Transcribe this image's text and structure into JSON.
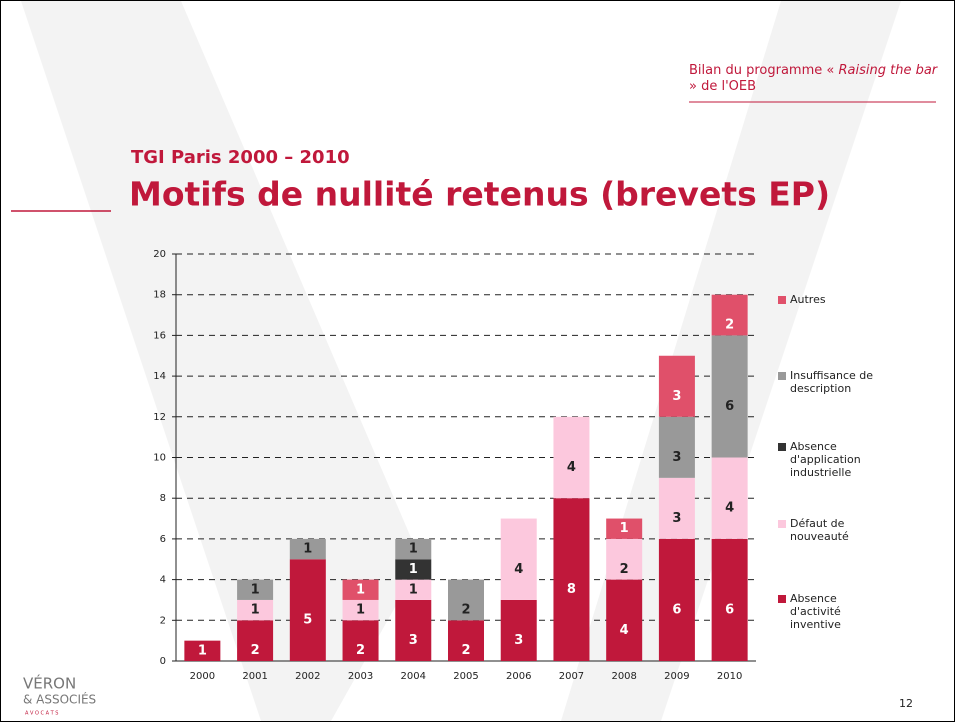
{
  "header": {
    "parts": [
      "Bilan du programme « ",
      "Raising the bar",
      " » de l'OEB"
    ]
  },
  "chart_data": {
    "type": "stacked_bar",
    "subtitle": "TGI Paris 2000 – 2010",
    "title": "Motifs de nullité retenus (brevets EP)",
    "categories": [
      "2000",
      "2001",
      "2002",
      "2003",
      "2004",
      "2005",
      "2006",
      "2007",
      "2008",
      "2009",
      "2010"
    ],
    "series": [
      {
        "name": "Absence d'activité inventive",
        "color": "#c0183b",
        "values": [
          1,
          2,
          5,
          2,
          3,
          2,
          3,
          8,
          4,
          6,
          6
        ]
      },
      {
        "name": "Défaut de nouveauté",
        "color": "#fcc8dd",
        "values": [
          0,
          1,
          0,
          1,
          1,
          0,
          4,
          4,
          2,
          3,
          4
        ]
      },
      {
        "name": "Absence d'application industrielle",
        "color": "#333333",
        "values": [
          0,
          0,
          0,
          0,
          1,
          0,
          0,
          0,
          0,
          0,
          0
        ]
      },
      {
        "name": "Insuffisance de description",
        "color": "#999999",
        "values": [
          0,
          1,
          1,
          0,
          1,
          2,
          0,
          0,
          0,
          3,
          6
        ]
      },
      {
        "name": "Autres",
        "color": "#e0506a",
        "values": [
          0,
          0,
          0,
          1,
          0,
          0,
          0,
          0,
          1,
          3,
          2
        ]
      }
    ],
    "ylim": [
      0,
      20
    ],
    "yticks": [
      0,
      2,
      4,
      6,
      8,
      10,
      12,
      14,
      16,
      18,
      20
    ],
    "grid": true
  },
  "logo": {
    "name": "VÉRON",
    "sub": "& ASSOCIÉS",
    "tag": "A V O C A T S"
  },
  "page_number": "12"
}
